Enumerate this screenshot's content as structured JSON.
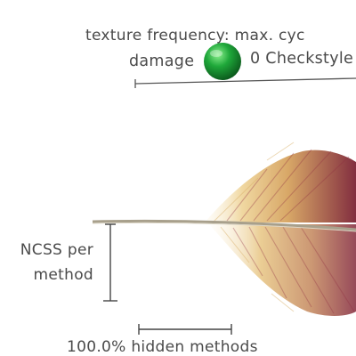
{
  "labels": {
    "top_line1": "texture frequency: max. cyc",
    "top_line2_left": "damage",
    "top_line2_right": "0 Checkstyle",
    "left_line1": "NCSS per",
    "left_line2": "method",
    "bottom": "100.0% hidden methods"
  },
  "colors": {
    "text": "#4a4a4a",
    "feather_base": "#e7c37a",
    "feather_tip": "#7c2335",
    "ball": "#1fa83a"
  }
}
